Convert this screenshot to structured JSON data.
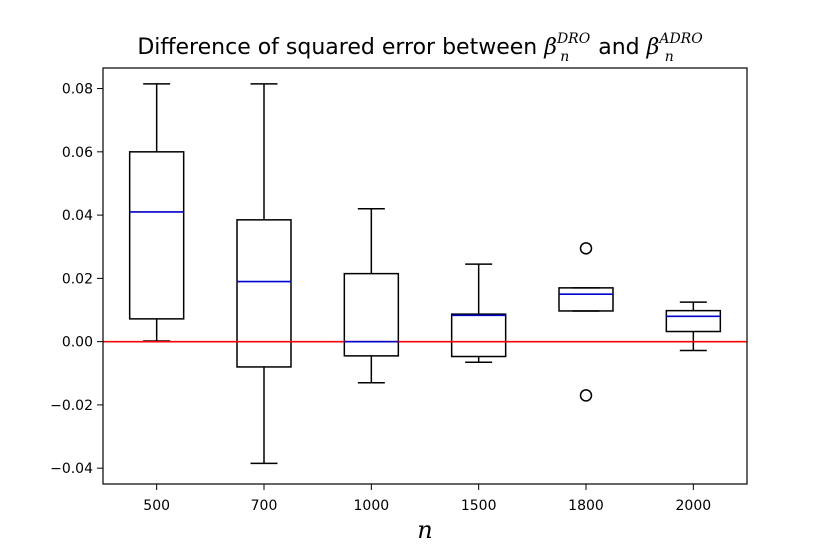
{
  "chart_data": {
    "type": "box",
    "title": {
      "prefix": "Difference of squared error between ",
      "sym1": "β",
      "sup1": "DRO",
      "sub1": "n",
      "mid": " and ",
      "sym2": "β",
      "sup2": "ADRO",
      "sub2": "n"
    },
    "xlabel": "n",
    "ylabel": "",
    "categories": [
      "500",
      "700",
      "1000",
      "1500",
      "1800",
      "2000"
    ],
    "ylim": [
      -0.045,
      0.0865
    ],
    "yticks": [
      -0.04,
      -0.02,
      0.0,
      0.02,
      0.04,
      0.06,
      0.08
    ],
    "ytick_labels": [
      "−0.04",
      "−0.02",
      "0.00",
      "0.02",
      "0.04",
      "0.06",
      "0.08"
    ],
    "boxes": [
      {
        "category": "500",
        "whisker_low": 0.0002,
        "q1": 0.0072,
        "median": 0.041,
        "q3": 0.06,
        "whisker_high": 0.0815,
        "outliers": []
      },
      {
        "category": "700",
        "whisker_low": -0.0385,
        "q1": -0.008,
        "median": 0.019,
        "q3": 0.0385,
        "whisker_high": 0.0815,
        "outliers": []
      },
      {
        "category": "1000",
        "whisker_low": -0.013,
        "q1": -0.0045,
        "median": 0.0,
        "q3": 0.0215,
        "whisker_high": 0.042,
        "outliers": []
      },
      {
        "category": "1500",
        "whisker_low": -0.0065,
        "q1": -0.0047,
        "median": 0.0083,
        "q3": 0.0087,
        "whisker_high": 0.0245,
        "outliers": []
      },
      {
        "category": "1800",
        "whisker_low": 0.0097,
        "q1": 0.0097,
        "median": 0.015,
        "q3": 0.017,
        "whisker_high": 0.017,
        "outliers": [
          0.0295,
          -0.017
        ]
      },
      {
        "category": "2000",
        "whisker_low": -0.0028,
        "q1": 0.0032,
        "median": 0.008,
        "q3": 0.0098,
        "whisker_high": 0.0125,
        "outliers": []
      }
    ],
    "reference_line": {
      "y": 0.0,
      "color": "#ff0000"
    },
    "median_color": "#0000cc",
    "box_color": "#000000",
    "grid": false,
    "legend": "none"
  }
}
